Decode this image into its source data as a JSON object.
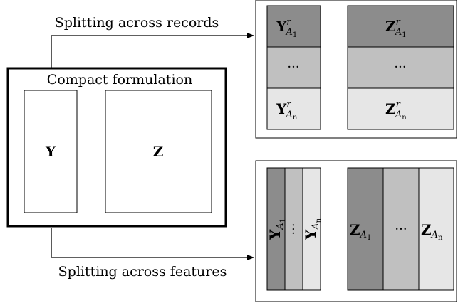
{
  "labels": {
    "top_arrow": "Splitting across records",
    "bottom_arrow": "Splitting across features",
    "compact": "Compact formulation"
  },
  "compact": {
    "left": "Y",
    "right": "Z"
  },
  "records": {
    "left": [
      "Y",
      "···",
      "Y"
    ],
    "right": [
      "Z",
      "···",
      "Z"
    ],
    "superscript": "r",
    "subscripts": [
      "A",
      "",
      "A"
    ],
    "subsubs": [
      "1",
      "",
      "n"
    ]
  },
  "features": {
    "left": [
      "Y",
      "···",
      "Y"
    ],
    "right": [
      "Z",
      "···",
      "Z"
    ],
    "subscripts": [
      "A",
      "",
      "A"
    ],
    "subsubs": [
      "1",
      "",
      "n"
    ]
  },
  "colors": {
    "dark": "#8c8c8c",
    "mid": "#c0c0c0",
    "light": "#e6e6e6"
  }
}
